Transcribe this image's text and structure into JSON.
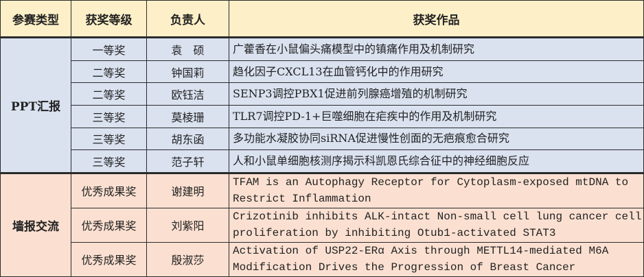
{
  "headers": [
    "参赛类型",
    "获奖等级",
    "负责人",
    "获奖作品"
  ],
  "groups": [
    {
      "category": "PPT汇报",
      "rows": [
        {
          "level": "一等奖",
          "person": "袁　硕",
          "work": "广藿香在小鼠偏头痛模型中的镇痛作用及机制研究"
        },
        {
          "level": "二等奖",
          "person": "钟国莉",
          "work": "趋化因子CXCL13在血管钙化中的作用研究"
        },
        {
          "level": "二等奖",
          "person": "欧钰洁",
          "work": "SENP3调控PBX1促进前列腺癌增殖的机制研究"
        },
        {
          "level": "三等奖",
          "person": "莫棱珊",
          "work": "TLR7调控PD-1+巨噬细胞在疟疾中的作用及机制研究"
        },
        {
          "level": "三等奖",
          "person": "胡东函",
          "work": "多功能水凝胶协同siRNA促进慢性创面的无疤痕愈合研究"
        },
        {
          "level": "三等奖",
          "person": "范子轩",
          "work": "人和小鼠单细胞核测序揭示科凯恩氏综合征中的神经细胞反应"
        }
      ]
    },
    {
      "category": "墙报交流",
      "rows": [
        {
          "level": "优秀成果奖",
          "person": "谢建明",
          "work": "TFAM is an Autophagy Receptor for Cytoplasm-exposed mtDNA to Restrict Inflammation"
        },
        {
          "level": "优秀成果奖",
          "person": "刘紫阳",
          "work": "Crizotinib inhibits ALK-intact Non-small cell lung cancer cell proliferation by inhibiting Otub1-activated STAT3"
        },
        {
          "level": "优秀成果奖",
          "person": "殷淑莎",
          "work": "Activation of USP22-ERα Axis through METTL14-mediated M6A Modification Drives the Progression of Breast Cancer"
        }
      ]
    }
  ],
  "colors": {
    "header_bg": "#fdf0c8",
    "ppt_bg": "#dae2f0",
    "poster_bg": "#fbe0d1"
  }
}
